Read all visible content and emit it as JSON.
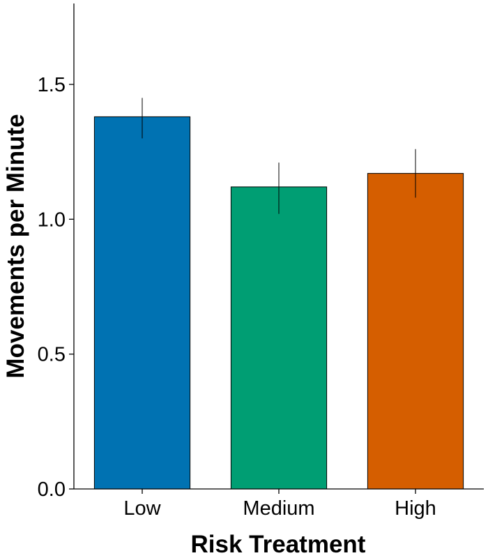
{
  "chart_data": {
    "type": "bar",
    "title": "",
    "xlabel": "Risk Treatment",
    "ylabel": "Movements per Minute",
    "categories": [
      "Low",
      "Medium",
      "High"
    ],
    "values": [
      1.38,
      1.12,
      1.17
    ],
    "error_low": [
      1.3,
      1.02,
      1.08
    ],
    "error_high": [
      1.45,
      1.21,
      1.26
    ],
    "colors": [
      "#0072B2",
      "#009E73",
      "#D55E00"
    ],
    "ylim": [
      0,
      1.8
    ],
    "yticks": [
      0.0,
      0.5,
      1.0,
      1.5
    ],
    "ytick_labels": [
      "0.0",
      "0.5",
      "1.0",
      "1.5"
    ],
    "grid": false,
    "legend": "none"
  }
}
